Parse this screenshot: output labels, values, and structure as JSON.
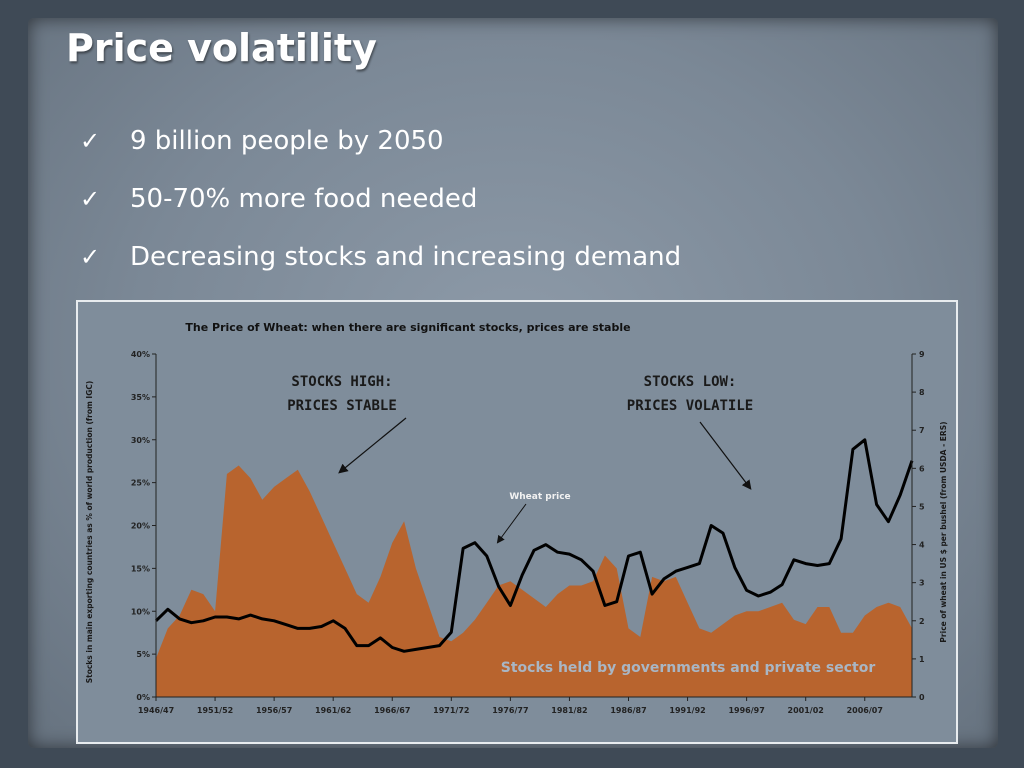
{
  "slide": {
    "title": "Price volatility",
    "bullets": [
      "9 billion people by 2050",
      "50-70% more food needed",
      "Decreasing stocks and increasing demand"
    ],
    "bullet_icon": "checkmark-icon"
  },
  "chart_data": {
    "type": "area",
    "title": "The Price of Wheat: when there are significant stocks, prices are stable",
    "ylabel": "Stocks in main exporting countries as % of world production (from IGC)",
    "y2label": "Price of wheat in US $ per bushel (from USDA - ERS)",
    "xlabel": "",
    "x_ticks": [
      "1946/47",
      "1951/52",
      "1956/57",
      "1961/62",
      "1966/67",
      "1971/72",
      "1976/77",
      "1981/82",
      "1986/87",
      "1991/92",
      "1996/97",
      "2001/02",
      "2006/07"
    ],
    "y_ticks": [
      "0%",
      "5%",
      "10%",
      "15%",
      "20%",
      "25%",
      "30%",
      "35%",
      "40%"
    ],
    "y2_ticks": [
      "0",
      "1",
      "2",
      "3",
      "4",
      "5",
      "6",
      "7",
      "8",
      "9"
    ],
    "ylim": [
      0,
      40
    ],
    "y2lim": [
      0,
      9
    ],
    "x": [
      1946,
      1947,
      1948,
      1949,
      1950,
      1951,
      1952,
      1953,
      1954,
      1955,
      1956,
      1957,
      1958,
      1959,
      1960,
      1961,
      1962,
      1963,
      1964,
      1965,
      1966,
      1967,
      1968,
      1969,
      1970,
      1971,
      1972,
      1973,
      1974,
      1975,
      1976,
      1977,
      1978,
      1979,
      1980,
      1981,
      1982,
      1983,
      1984,
      1985,
      1986,
      1987,
      1988,
      1989,
      1990,
      1991,
      1992,
      1993,
      1994,
      1995,
      1996,
      1997,
      1998,
      1999,
      2000,
      2001,
      2002,
      2003,
      2004,
      2005,
      2006,
      2007,
      2008,
      2009,
      2010
    ],
    "series": [
      {
        "name": "Stocks held by governments and private sector",
        "axis": "left",
        "color": "#b8642e",
        "values": [
          4.5,
          8,
          9.5,
          12.5,
          12,
          10,
          26,
          27,
          25.5,
          23,
          24.5,
          25.5,
          26.5,
          24,
          21,
          18,
          15,
          12,
          11,
          14,
          18,
          20.5,
          15,
          11,
          7,
          6.5,
          7.5,
          9,
          11,
          13,
          13.5,
          12.5,
          11.5,
          10.5,
          12,
          13,
          13,
          13.5,
          16.5,
          15,
          8,
          7,
          14,
          13.5,
          14,
          11,
          8,
          7.5,
          8.5,
          9.5,
          10,
          10,
          10.5,
          11,
          9,
          8.5,
          10.5,
          10.5,
          7.5,
          7.5,
          9.5,
          10.5,
          11,
          10.5,
          8
        ]
      },
      {
        "name": "Wheat price",
        "axis": "right",
        "color": "#000000",
        "values": [
          2,
          2.3,
          2.05,
          1.95,
          2,
          2.1,
          2.1,
          2.05,
          2.15,
          2.05,
          2,
          1.9,
          1.8,
          1.8,
          1.85,
          2,
          1.8,
          1.35,
          1.35,
          1.55,
          1.3,
          1.2,
          1.25,
          1.3,
          1.35,
          1.7,
          3.9,
          4.05,
          3.7,
          2.9,
          2.4,
          3.2,
          3.85,
          4,
          3.8,
          3.75,
          3.6,
          3.3,
          2.4,
          2.5,
          3.7,
          3.8,
          2.7,
          3.1,
          3.3,
          3.4,
          3.5,
          4.5,
          4.3,
          3.4,
          2.8,
          2.65,
          2.75,
          2.95,
          3.6,
          3.5,
          3.45,
          3.5,
          4.15,
          6.5,
          6.75,
          5.05,
          4.6,
          5.3,
          6.2
        ]
      }
    ],
    "annotations": [
      "STOCKS HIGH:",
      "PRICES STABLE",
      "STOCKS LOW:",
      "PRICES VOLATILE",
      "Wheat price",
      "Stocks held by governments and private sector"
    ],
    "grid": false,
    "legend": "none"
  }
}
